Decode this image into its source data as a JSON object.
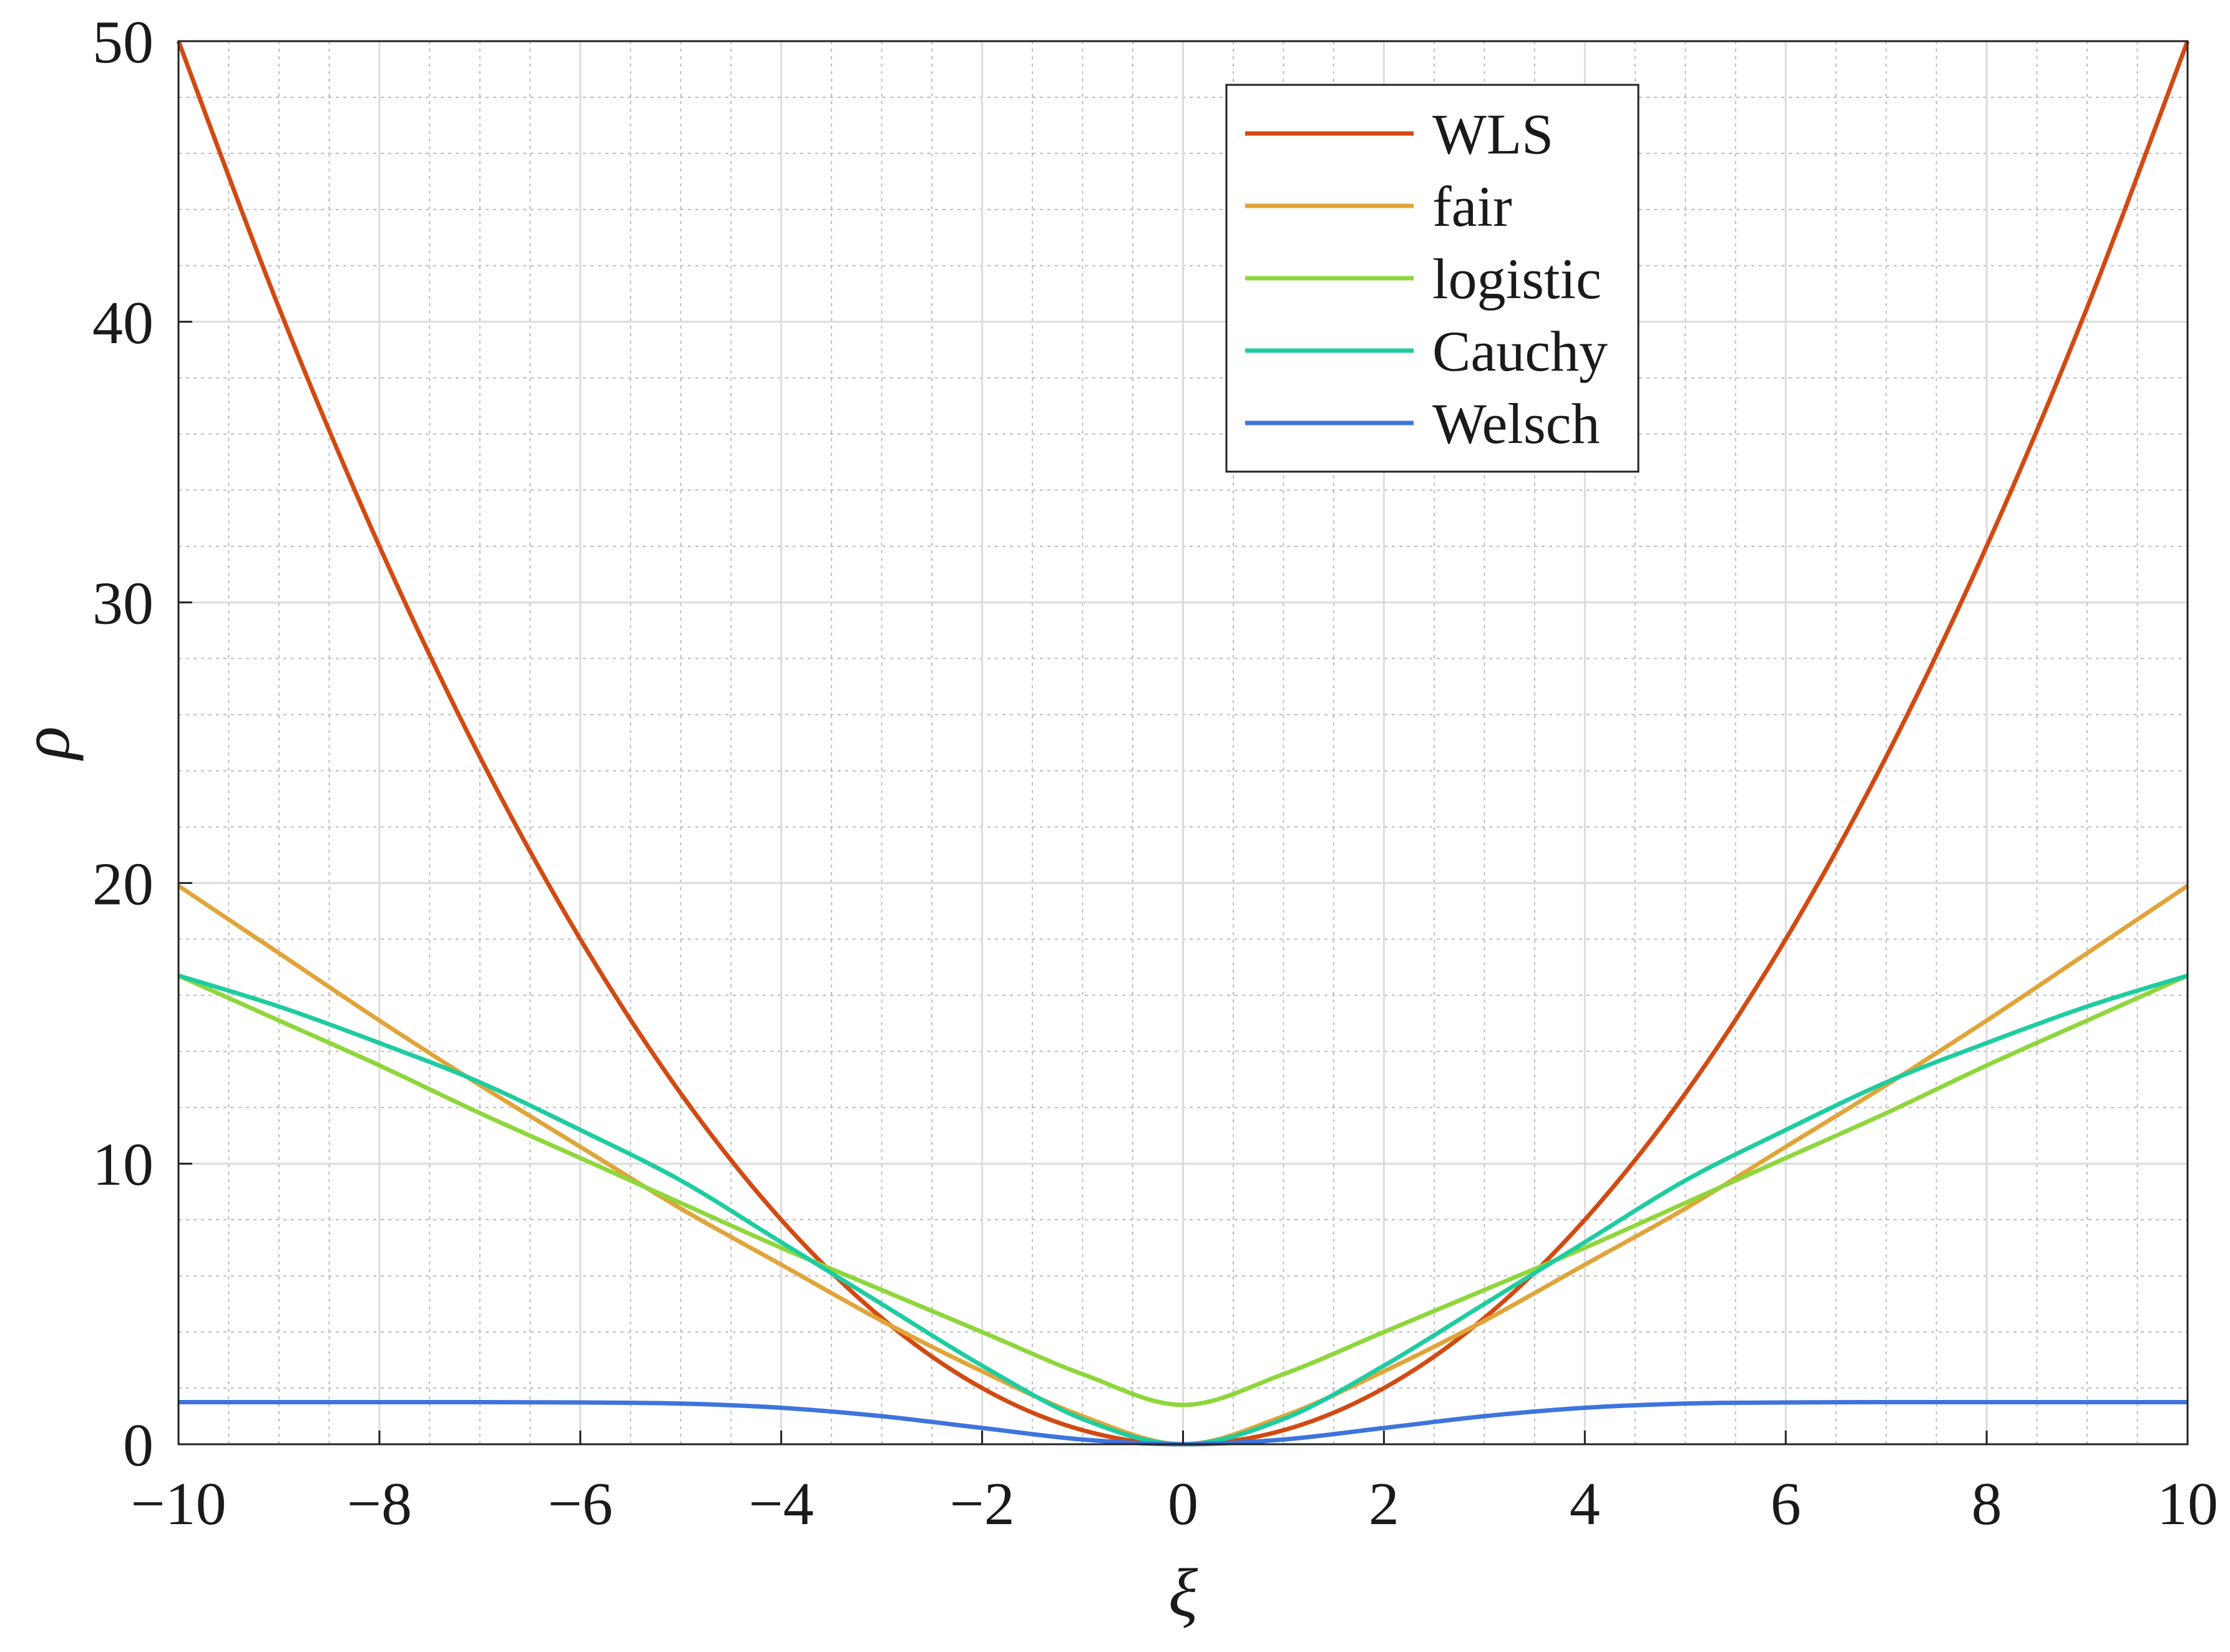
{
  "chart_data": {
    "type": "line",
    "xlabel": "ξ",
    "ylabel": "ρ",
    "xlim": [
      -10,
      10
    ],
    "ylim": [
      0,
      50
    ],
    "xticks": [
      -10,
      -8,
      -6,
      -4,
      -2,
      0,
      2,
      4,
      6,
      8,
      10
    ],
    "xtick_labels": [
      "−10",
      "−8",
      "−6",
      "−4",
      "−2",
      "0",
      "2",
      "4",
      "6",
      "8",
      "10"
    ],
    "yticks": [
      0,
      10,
      20,
      30,
      40,
      50
    ],
    "ytick_labels": [
      "0",
      "10",
      "20",
      "30",
      "40",
      "50"
    ],
    "grid": true,
    "minor_grid": true,
    "legend_position": "top-right",
    "x": [
      -10,
      -9,
      -8,
      -7,
      -6,
      -5,
      -4,
      -3,
      -2,
      -1,
      0,
      1,
      2,
      3,
      4,
      5,
      6,
      7,
      8,
      9,
      10
    ],
    "series": [
      {
        "name": "WLS",
        "color": "#d24a12",
        "values": [
          50,
          40.5,
          32,
          24.5,
          18,
          12.5,
          8,
          4.5,
          2,
          0.5,
          0,
          0.5,
          2,
          4.5,
          8,
          12.5,
          18,
          24.5,
          32,
          40.5,
          50
        ]
      },
      {
        "name": "fair",
        "color": "#e0a53a",
        "values": [
          19.9,
          17.5,
          15.1,
          12.8,
          10.6,
          8.4,
          6.4,
          4.4,
          2.6,
          1.0,
          0,
          1.0,
          2.6,
          4.4,
          6.4,
          8.4,
          10.6,
          12.8,
          15.1,
          17.5,
          19.9
        ]
      },
      {
        "name": "logistic",
        "color": "#8fd63c",
        "values": [
          16.7,
          15.1,
          13.5,
          11.8,
          10.2,
          8.6,
          7.0,
          5.5,
          4.0,
          2.5,
          1.4,
          2.5,
          4.0,
          5.5,
          7.0,
          8.6,
          10.2,
          11.8,
          13.5,
          15.1,
          16.7
        ]
      },
      {
        "name": "Cauchy",
        "color": "#1fcca0",
        "values": [
          16.7,
          15.6,
          14.3,
          12.9,
          11.2,
          9.4,
          7.2,
          5.0,
          2.8,
          0.9,
          0,
          0.9,
          2.8,
          5.0,
          7.2,
          9.4,
          11.2,
          12.9,
          14.3,
          15.6,
          16.7
        ]
      },
      {
        "name": "Welsch",
        "color": "#3e74dd",
        "values": [
          1.5,
          1.5,
          1.5,
          1.5,
          1.49,
          1.45,
          1.3,
          1.0,
          0.58,
          0.17,
          0,
          0.17,
          0.58,
          1.0,
          1.3,
          1.45,
          1.49,
          1.5,
          1.5,
          1.5,
          1.5
        ]
      }
    ]
  }
}
